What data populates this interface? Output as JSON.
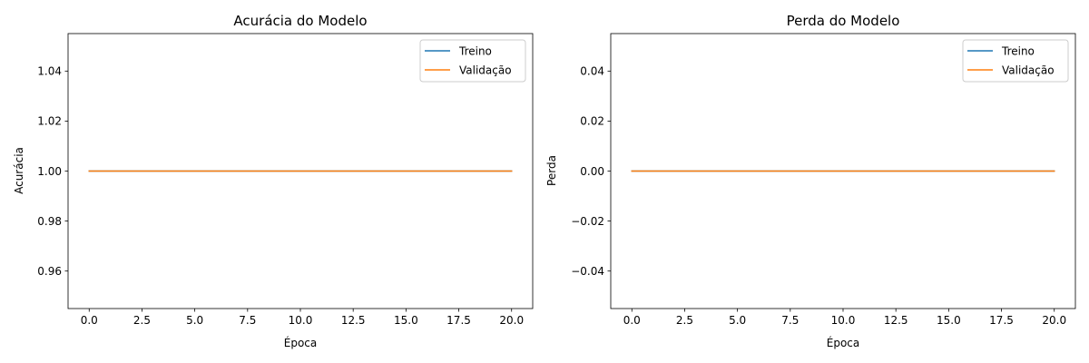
{
  "chart_data": [
    {
      "type": "line",
      "title": "Acurácia do Modelo",
      "xlabel": "Época",
      "ylabel": "Acurácia",
      "xlim": [
        -1.0,
        21.0
      ],
      "ylim": [
        0.945,
        1.055
      ],
      "xticks": [
        0.0,
        2.5,
        5.0,
        7.5,
        10.0,
        12.5,
        15.0,
        17.5,
        20.0
      ],
      "xtick_labels": [
        "0.0",
        "2.5",
        "5.0",
        "7.5",
        "10.0",
        "12.5",
        "15.0",
        "17.5",
        "20.0"
      ],
      "yticks": [
        0.96,
        0.98,
        1.0,
        1.02,
        1.04
      ],
      "ytick_labels": [
        "0.96",
        "0.98",
        "1.00",
        "1.02",
        "1.04"
      ],
      "grid": false,
      "legend": "top-right",
      "series": [
        {
          "name": "Treino",
          "color": "#1f77b4",
          "x": [
            0,
            1,
            2,
            3,
            4,
            5,
            6,
            7,
            8,
            9,
            10,
            11,
            12,
            13,
            14,
            15,
            16,
            17,
            18,
            19,
            20
          ],
          "y": [
            1,
            1,
            1,
            1,
            1,
            1,
            1,
            1,
            1,
            1,
            1,
            1,
            1,
            1,
            1,
            1,
            1,
            1,
            1,
            1,
            1
          ]
        },
        {
          "name": "Validação",
          "color": "#ff7f0e",
          "x": [
            0,
            1,
            2,
            3,
            4,
            5,
            6,
            7,
            8,
            9,
            10,
            11,
            12,
            13,
            14,
            15,
            16,
            17,
            18,
            19,
            20
          ],
          "y": [
            1,
            1,
            1,
            1,
            1,
            1,
            1,
            1,
            1,
            1,
            1,
            1,
            1,
            1,
            1,
            1,
            1,
            1,
            1,
            1,
            1
          ]
        }
      ]
    },
    {
      "type": "line",
      "title": "Perda do Modelo",
      "xlabel": "Época",
      "ylabel": "Perda",
      "xlim": [
        -1.0,
        21.0
      ],
      "ylim": [
        -0.055,
        0.055
      ],
      "xticks": [
        0.0,
        2.5,
        5.0,
        7.5,
        10.0,
        12.5,
        15.0,
        17.5,
        20.0
      ],
      "xtick_labels": [
        "0.0",
        "2.5",
        "5.0",
        "7.5",
        "10.0",
        "12.5",
        "15.0",
        "17.5",
        "20.0"
      ],
      "yticks": [
        -0.04,
        -0.02,
        0.0,
        0.02,
        0.04
      ],
      "ytick_labels": [
        "−0.04",
        "−0.02",
        "0.00",
        "0.02",
        "0.04"
      ],
      "grid": false,
      "legend": "top-right",
      "series": [
        {
          "name": "Treino",
          "color": "#1f77b4",
          "x": [
            0,
            1,
            2,
            3,
            4,
            5,
            6,
            7,
            8,
            9,
            10,
            11,
            12,
            13,
            14,
            15,
            16,
            17,
            18,
            19,
            20
          ],
          "y": [
            0,
            0,
            0,
            0,
            0,
            0,
            0,
            0,
            0,
            0,
            0,
            0,
            0,
            0,
            0,
            0,
            0,
            0,
            0,
            0,
            0
          ]
        },
        {
          "name": "Validação",
          "color": "#ff7f0e",
          "x": [
            0,
            1,
            2,
            3,
            4,
            5,
            6,
            7,
            8,
            9,
            10,
            11,
            12,
            13,
            14,
            15,
            16,
            17,
            18,
            19,
            20
          ],
          "y": [
            0,
            0,
            0,
            0,
            0,
            0,
            0,
            0,
            0,
            0,
            0,
            0,
            0,
            0,
            0,
            0,
            0,
            0,
            0,
            0,
            0
          ]
        }
      ]
    }
  ]
}
